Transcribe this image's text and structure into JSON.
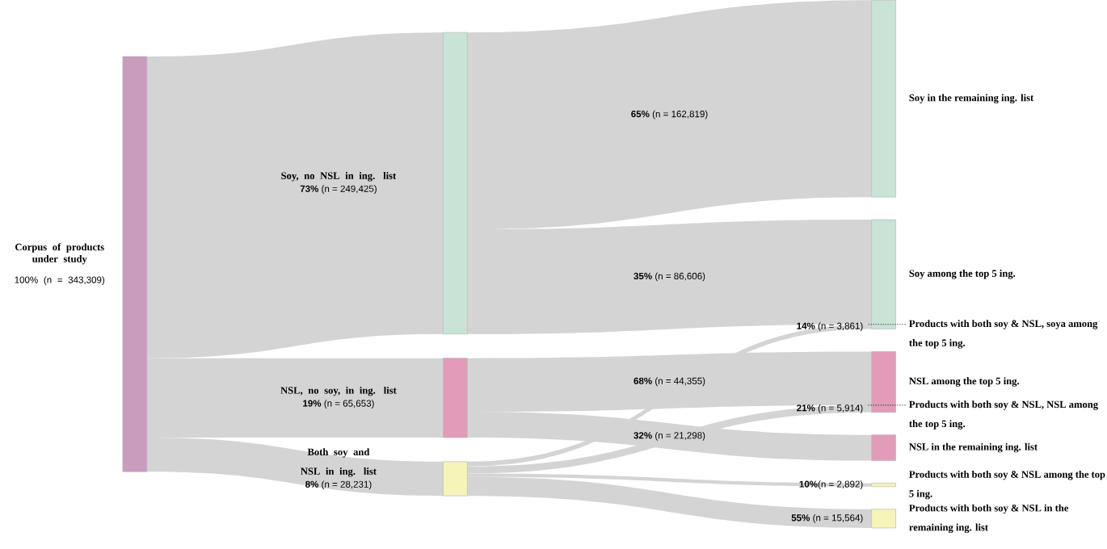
{
  "chart_data": {
    "type": "other",
    "categories": [
      "Corpus of products under study",
      "Soy, no NSL in ing. list",
      "NSL, no soy, in ing. list",
      "Both soy and NSL in ing. list",
      "Soy in the remaining ing. list",
      "Soy among the top 5 ing.",
      "NSL among the top 5 ing.",
      "NSL in the remaining ing. list",
      "Products with both soy & NSL among the top 5 ing.",
      "Products with both soy & NSL in the remaining ing. list"
    ],
    "colors": [
      "#c99bbd",
      "#c9e3d6",
      "#e29bb9",
      "#f6f4b9",
      "#c9e3d6",
      "#c9e3d6",
      "#e29bb9",
      "#e29bb9",
      "#f6f4b9",
      "#f6f4b9"
    ],
    "series": [
      {
        "color": "#d4d4d4",
        "values": [
          null,
          249425,
          65653,
          28231,
          null,
          null,
          null,
          null,
          null,
          null
        ],
        "value_labels": [
          null,
          "**73%** (n = 249,425)",
          "**19%** (n = 65,653)",
          "**8%** (n = 28,231)",
          null,
          null,
          null,
          null,
          null,
          null
        ]
      },
      {
        "color": "#d4d4d4",
        "values": [
          null,
          null,
          null,
          null,
          162819,
          86606,
          null,
          null,
          null,
          null
        ],
        "value_labels": [
          null,
          null,
          null,
          null,
          "**65%** (n = 162,819)",
          "**35%** (n = 86,606)",
          null,
          null,
          null,
          null
        ]
      },
      {
        "color": "#d4d4d4",
        "values": [
          null,
          null,
          null,
          null,
          null,
          null,
          44355,
          21298,
          null,
          null
        ],
        "value_labels": [
          null,
          null,
          null,
          null,
          null,
          null,
          "**68%** (n = 44,355)",
          "**32%** (n = 21,298)",
          null,
          null
        ]
      },
      {
        "color": "#d4d4d4",
        "values": [
          null,
          null,
          null,
          null,
          null,
          3861,
          5914,
          null,
          2892,
          15564
        ],
        "value_labels": [
          null,
          null,
          null,
          null,
          null,
          "**14%** (n = 3,861)",
          "**21%** (n = 5,914)",
          null,
          "**10%**(n = 2,892)",
          "**55%** (n = 15,564)"
        ]
      }
    ],
    "annotations": [
      "100% (n = 343,309)",
      "Products with both soy & NSL, soya among the top 5 ing.",
      "Products with both soy & NSL, NSL among the top 5 ing."
    ]
  }
}
